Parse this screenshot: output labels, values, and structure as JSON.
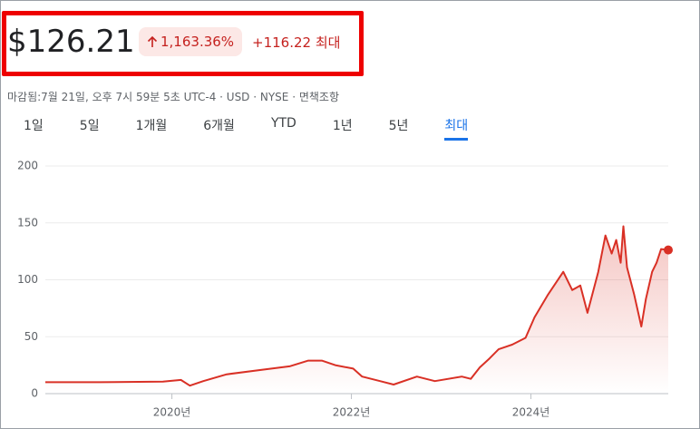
{
  "header": {
    "price": "$126.21",
    "change_percent": "1,163.36%",
    "change_value": "+116.22",
    "range_label": "최대",
    "status": "마감됨:7월 21일, 오후 7시 59분 5초 UTC-4 · USD · NYSE · 면책조항"
  },
  "tabs": [
    "1일",
    "5일",
    "1개월",
    "6개월",
    "YTD",
    "1년",
    "5년",
    "최대"
  ],
  "selected_tab": 7,
  "chart_data": {
    "type": "line",
    "series": [
      {
        "color": "#d93025",
        "x": [
          2018.59,
          2018.9,
          2019.2,
          2019.5,
          2019.9,
          2020.1,
          2020.2,
          2020.35,
          2020.61,
          2021.01,
          2021.31,
          2021.52,
          2021.67,
          2021.82,
          2022.02,
          2022.12,
          2022.32,
          2022.47,
          2022.73,
          2022.93,
          2023.23,
          2023.33,
          2023.43,
          2023.54,
          2023.64,
          2023.79,
          2023.94,
          2024.04,
          2024.19,
          2024.36,
          2024.46,
          2024.55,
          2024.63,
          2024.75,
          2024.83,
          2024.9,
          2024.95,
          2025.0,
          2025.03,
          2025.07,
          2025.15,
          2025.23,
          2025.28,
          2025.35,
          2025.4,
          2025.45,
          2025.53
        ],
        "values": [
          10,
          10,
          10,
          10.3,
          10.5,
          12,
          7,
          11,
          17,
          21,
          24,
          29,
          29,
          25,
          22,
          15,
          11,
          8,
          15,
          11,
          15,
          13,
          23,
          31,
          39,
          43,
          49,
          67,
          87,
          107,
          91,
          95,
          71,
          107,
          139,
          123,
          135,
          115,
          147,
          111,
          87,
          59,
          83,
          107,
          115,
          127,
          126.21
        ]
      }
    ],
    "xlim": [
      2018.59,
      2025.53
    ],
    "xticks": [
      {
        "value": 2020,
        "label": "2020년"
      },
      {
        "value": 2022,
        "label": "2022년"
      },
      {
        "value": 2024,
        "label": "2024년"
      }
    ],
    "ylim": [
      0,
      200
    ],
    "yticks": [
      0,
      50,
      100,
      150,
      200
    ],
    "grid": true
  }
}
